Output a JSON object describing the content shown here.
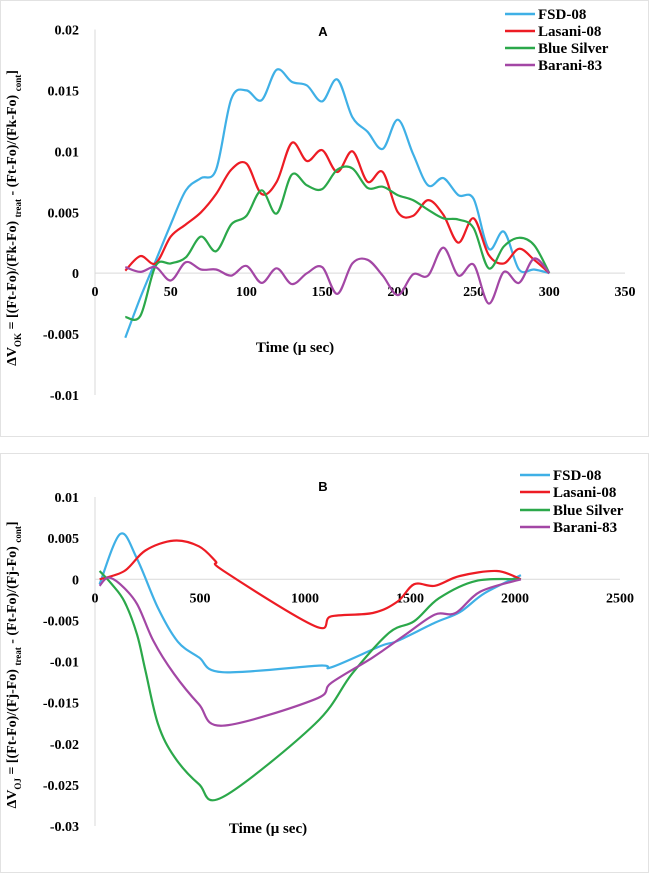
{
  "chart_data": [
    {
      "type": "line",
      "title": "A",
      "xlabel": "Time (μ sec)",
      "ylabel": {
        "prefix": "ΔV",
        "sub1": "OK",
        "mid": " = [(Ft-Fo)/(Fk-Fo) ",
        "sub2": "treat",
        "mid2": " - (Ft-Fo)/(Fk-Fo) ",
        "sub3": "cont",
        "end": "]"
      },
      "xlim": [
        0,
        350
      ],
      "ylim": [
        -0.01,
        0.02
      ],
      "xticks": [
        "0",
        "50",
        "100",
        "150",
        "200",
        "250",
        "300",
        "350"
      ],
      "yticks": [
        "0.02",
        "0.015",
        "0.01",
        "0.005",
        "0",
        "-0.005",
        "-0.01"
      ],
      "legend_position": "top-right",
      "x": [
        20,
        30,
        40,
        50,
        60,
        70,
        80,
        90,
        100,
        110,
        120,
        130,
        140,
        150,
        160,
        170,
        180,
        190,
        200,
        210,
        220,
        230,
        240,
        250,
        260,
        270,
        280,
        290,
        300
      ],
      "series": [
        {
          "name": "FSD-08",
          "color": "#3fb0e6",
          "values": [
            -0.0053,
            -0.002,
            0.001,
            0.004,
            0.0068,
            0.0078,
            0.0085,
            0.0143,
            0.015,
            0.0142,
            0.0167,
            0.0157,
            0.0154,
            0.0141,
            0.0159,
            0.0128,
            0.0116,
            0.0102,
            0.0126,
            0.0098,
            0.0072,
            0.0078,
            0.0064,
            0.0061,
            0.002,
            0.0034,
            0.0003,
            0.0003,
            0
          ]
        },
        {
          "name": "Lasani-08",
          "color": "#ed1c24",
          "values": [
            0.0002,
            0.0014,
            0.0008,
            0.003,
            0.004,
            0.005,
            0.0065,
            0.0085,
            0.009,
            0.0065,
            0.0075,
            0.0107,
            0.0092,
            0.0101,
            0.0083,
            0.01,
            0.0075,
            0.0083,
            0.005,
            0.0047,
            0.006,
            0.0048,
            0.0025,
            0.0045,
            0.0015,
            0.0008,
            0.002,
            0.0011,
            0
          ]
        },
        {
          "name": "Blue Silver",
          "color": "#2ba84a",
          "values": [
            -0.0036,
            -0.0035,
            0.0006,
            0.0008,
            0.0013,
            0.003,
            0.0018,
            0.004,
            0.0047,
            0.0068,
            0.0049,
            0.0081,
            0.0072,
            0.0069,
            0.0085,
            0.0086,
            0.007,
            0.0071,
            0.0064,
            0.006,
            0.0052,
            0.0045,
            0.0044,
            0.0037,
            0.0004,
            0.0022,
            0.0029,
            0.0023,
            0
          ]
        },
        {
          "name": "Barani-83",
          "color": "#a347a5",
          "values": [
            0.0005,
            0.0001,
            0.0005,
            -0.0006,
            0.0009,
            0.0003,
            0.0003,
            -0.0002,
            0.0006,
            -0.0008,
            0.0004,
            -0.0009,
            0,
            0.0005,
            -0.0017,
            0.0008,
            0.0011,
            -0.0002,
            -0.0018,
            -0.0001,
            -0.0002,
            0.0021,
            -0.0002,
            0.0007,
            -0.0025,
            0.0001,
            -0.0008,
            0.0012,
            0
          ]
        }
      ]
    },
    {
      "type": "line",
      "title": "B",
      "xlabel": "Time (μ sec)",
      "ylabel": {
        "prefix": "ΔV",
        "sub1": "OJ",
        "mid": " = [(Ft-Fo)/(Fj-Fo) ",
        "sub2": "treat",
        "mid2": " - (Ft-Fo)/(Fj-Fo) ",
        "sub3": "cont",
        "end": "]"
      },
      "xlim": [
        0,
        2500
      ],
      "ylim": [
        -0.03,
        0.01
      ],
      "xticks": [
        "0",
        "500",
        "1000",
        "1500",
        "2000",
        "2500"
      ],
      "yticks": [
        "0.01",
        "0.005",
        "0",
        "-0.005",
        "-0.01",
        "-0.015",
        "-0.02",
        "-0.025",
        "-0.03"
      ],
      "legend_position": "top-right",
      "series": [
        {
          "name": "FSD-08",
          "color": "#3fb0e6",
          "points": [
            [
              22,
              -0.0006
            ],
            [
              120,
              0.0055
            ],
            [
              200,
              0.0025
            ],
            [
              300,
              -0.0035
            ],
            [
              395,
              -0.0076
            ],
            [
              495,
              -0.0095
            ],
            [
              607,
              -0.0113
            ],
            [
              1066,
              -0.0105
            ],
            [
              1125,
              -0.0107
            ],
            [
              1362,
              -0.0081
            ],
            [
              1441,
              -0.0075
            ],
            [
              1618,
              -0.0053
            ],
            [
              1737,
              -0.004
            ],
            [
              1855,
              -0.0017
            ],
            [
              2028,
              0.0005
            ]
          ]
        },
        {
          "name": "Lasani-08",
          "color": "#ed1c24",
          "points": [
            [
              22,
              0
            ],
            [
              140,
              0.001
            ],
            [
              240,
              0.0035
            ],
            [
              375,
              0.0047
            ],
            [
              495,
              0.004
            ],
            [
              574,
              0.0022
            ],
            [
              613,
              0.001
            ],
            [
              1047,
              -0.0057
            ],
            [
              1125,
              -0.0045
            ],
            [
              1323,
              -0.0041
            ],
            [
              1441,
              -0.0027
            ],
            [
              1520,
              -0.0006
            ],
            [
              1618,
              -0.0008
            ],
            [
              1737,
              0.0004
            ],
            [
              1914,
              0.001
            ],
            [
              2028,
              0
            ]
          ]
        },
        {
          "name": "Blue Silver",
          "color": "#2ba84a",
          "points": [
            [
              22,
              0.001
            ],
            [
              80,
              -0.0006
            ],
            [
              140,
              -0.0027
            ],
            [
              200,
              -0.0067
            ],
            [
              240,
              -0.0111
            ],
            [
              300,
              -0.0176
            ],
            [
              378,
              -0.0216
            ],
            [
              495,
              -0.0249
            ],
            [
              607,
              -0.0265
            ],
            [
              1047,
              -0.0176
            ],
            [
              1224,
              -0.0115
            ],
            [
              1401,
              -0.0065
            ],
            [
              1520,
              -0.0051
            ],
            [
              1638,
              -0.0023
            ],
            [
              1815,
              -0.0002
            ],
            [
              2028,
              0
            ]
          ]
        },
        {
          "name": "Barani-83",
          "color": "#a347a5",
          "points": [
            [
              22,
              -0.0008
            ],
            [
              61,
              0.0002
            ],
            [
              120,
              -0.0006
            ],
            [
              200,
              -0.003
            ],
            [
              278,
              -0.0075
            ],
            [
              376,
              -0.0115
            ],
            [
              495,
              -0.0152
            ],
            [
              607,
              -0.0178
            ],
            [
              1047,
              -0.0146
            ],
            [
              1125,
              -0.0126
            ],
            [
              1323,
              -0.0095
            ],
            [
              1480,
              -0.0067
            ],
            [
              1618,
              -0.0043
            ],
            [
              1717,
              -0.0041
            ],
            [
              1835,
              -0.0015
            ],
            [
              2028,
              0
            ]
          ]
        }
      ]
    }
  ]
}
